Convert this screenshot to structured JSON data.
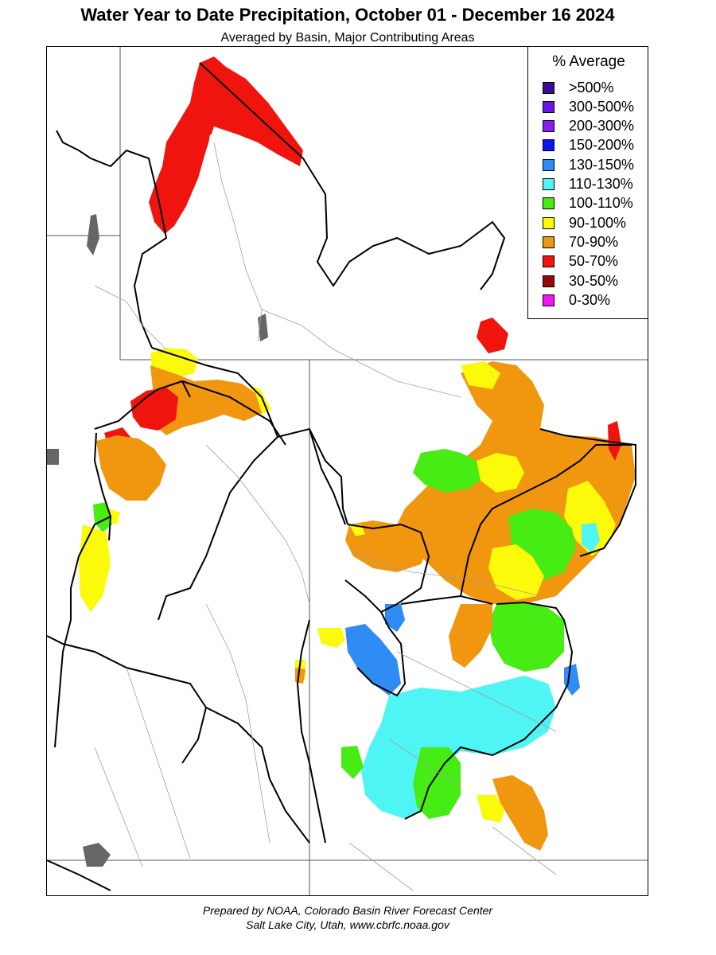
{
  "title": "Water Year to Date Precipitation, October 01  - December 16 2024",
  "subtitle": "Averaged by Basin, Major Contributing Areas",
  "legend": {
    "title": "% Average",
    "items": [
      {
        "label": ">500%",
        "color": "#3d0a9a"
      },
      {
        "label": "300-500%",
        "color": "#6a14e6"
      },
      {
        "label": "200-300%",
        "color": "#8b1cf5"
      },
      {
        "label": "150-200%",
        "color": "#0a14f0"
      },
      {
        "label": "130-150%",
        "color": "#2f8cf5"
      },
      {
        "label": "110-130%",
        "color": "#4ff5f5"
      },
      {
        "label": "100-110%",
        "color": "#46ec14"
      },
      {
        "label": "90-100%",
        "color": "#fafa0a"
      },
      {
        "label": "70-90%",
        "color": "#f0960f"
      },
      {
        "label": "50-70%",
        "color": "#f0140f"
      },
      {
        "label": "30-50%",
        "color": "#960a0a"
      },
      {
        "label": "0-30%",
        "color": "#f514f5"
      }
    ]
  },
  "footer": {
    "line1": "Prepared by NOAA, Colorado Basin River Forecast Center",
    "line2": "Salt Lake City, Utah, www.cbrfc.noaa.gov"
  }
}
